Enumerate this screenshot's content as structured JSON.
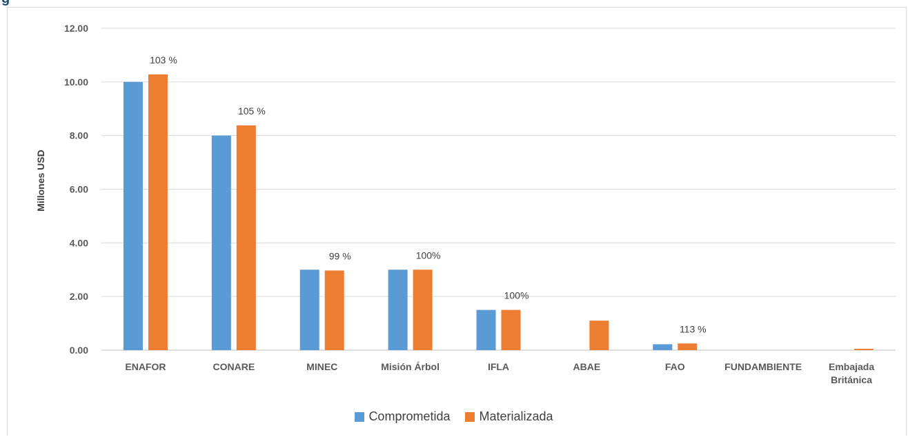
{
  "header": {
    "title": "g"
  },
  "chart_data": {
    "type": "bar",
    "title": "",
    "xlabel": "",
    "ylabel": "Millones USD",
    "ylim": [
      0,
      12
    ],
    "yticks": [
      "0.00",
      "2.00",
      "4.00",
      "6.00",
      "8.00",
      "10.00",
      "12.00"
    ],
    "grid": true,
    "legend_position": "bottom",
    "categories": [
      "ENAFOR",
      "CONARE",
      "MINEC",
      "Misión Árbol",
      "IFLA",
      "ABAE",
      "FAO",
      "FUNDAMBIENTE",
      "Embajada Británica"
    ],
    "series": [
      {
        "name": "Comprometida",
        "color": "#5b9bd5",
        "values": [
          10.0,
          8.0,
          3.0,
          3.0,
          1.5,
          0,
          0.22,
          0,
          0
        ]
      },
      {
        "name": "Materializada",
        "color": "#ed7d31",
        "values": [
          10.28,
          8.38,
          2.97,
          3.0,
          1.5,
          1.1,
          0.25,
          0,
          0.05
        ]
      }
    ],
    "data_labels": [
      "103 %",
      "105 %",
      "99 %",
      "100%",
      "100%",
      "",
      "113 %",
      "",
      ""
    ]
  }
}
